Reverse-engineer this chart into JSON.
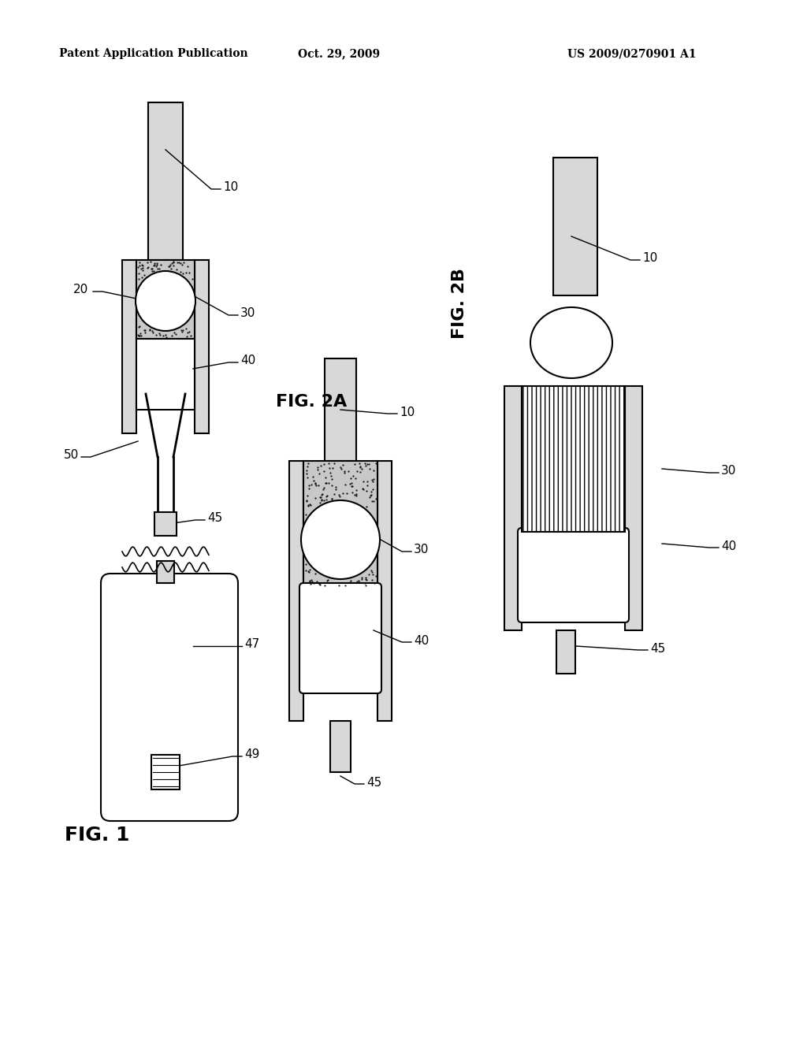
{
  "bg_color": "#ffffff",
  "header_left": "Patent Application Publication",
  "header_center": "Oct. 29, 2009",
  "header_right": "US 2009/0270901 A1",
  "fig1_label": "FIG. 1",
  "fig2a_label": "FIG. 2A",
  "fig2b_label": "FIG. 2B",
  "lw": 1.5,
  "stipple_color": "#c8c8c8",
  "wall_color": "#d8d8d8",
  "block_color": "#e8e8e8"
}
